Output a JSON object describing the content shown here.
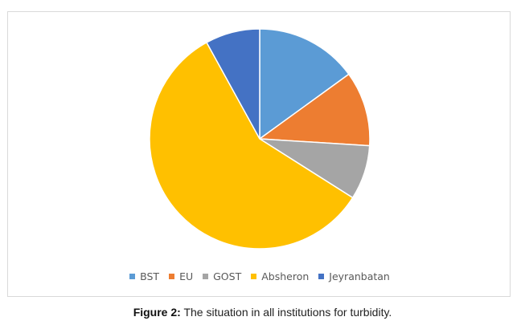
{
  "chart_data": {
    "type": "pie",
    "categories": [
      "BST",
      "EU",
      "GOST",
      "Absheron",
      "Jeyranbatan"
    ],
    "values": [
      15,
      11,
      8,
      58,
      8
    ],
    "colors": [
      "#5b9bd5",
      "#ed7d31",
      "#a5a5a5",
      "#ffc000",
      "#4472c4"
    ],
    "title": "",
    "legend_position": "bottom"
  },
  "caption": {
    "label": "Figure 2:",
    "text": " The situation in all institutions for turbidity."
  }
}
